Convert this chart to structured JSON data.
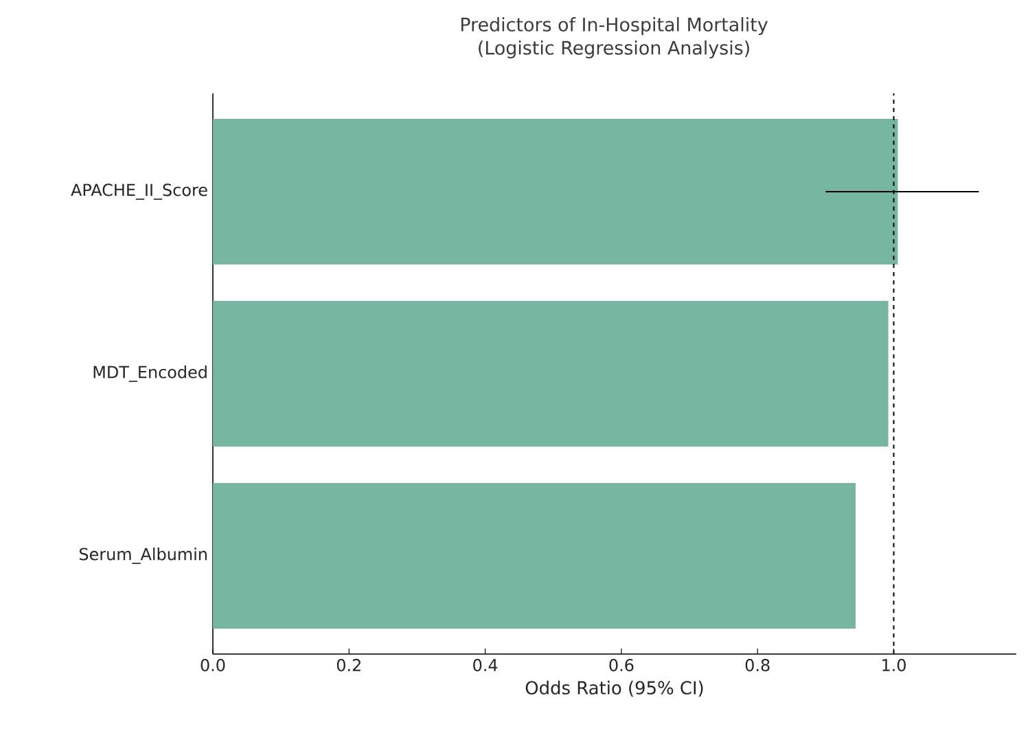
{
  "chart_data": {
    "type": "bar",
    "orientation": "horizontal",
    "title": "Predictors of In-Hospital Mortality",
    "subtitle": "(Logistic Regression Analysis)",
    "xlabel": "Odds Ratio (95% CI)",
    "categories": [
      "APACHE_II_Score",
      "MDT_Encoded",
      "Serum_Albumin"
    ],
    "values": [
      1.006,
      0.992,
      0.944
    ],
    "errors": [
      [
        0.9,
        1.125
      ],
      null,
      null
    ],
    "color": "#76b5a0",
    "xlim": [
      0,
      1.18
    ],
    "xticks": [
      {
        "value": 0,
        "label": "0.0"
      },
      {
        "value": 0.2,
        "label": "0.2"
      },
      {
        "value": 0.4,
        "label": "0.4"
      },
      {
        "value": 0.6,
        "label": "0.6"
      },
      {
        "value": 0.8,
        "label": "0.8"
      },
      {
        "value": 1.0,
        "label": "1.0"
      }
    ],
    "ref_lines": [
      {
        "axis": "x",
        "value": 1.0,
        "line_style": "dashed"
      }
    ],
    "grid": false
  }
}
